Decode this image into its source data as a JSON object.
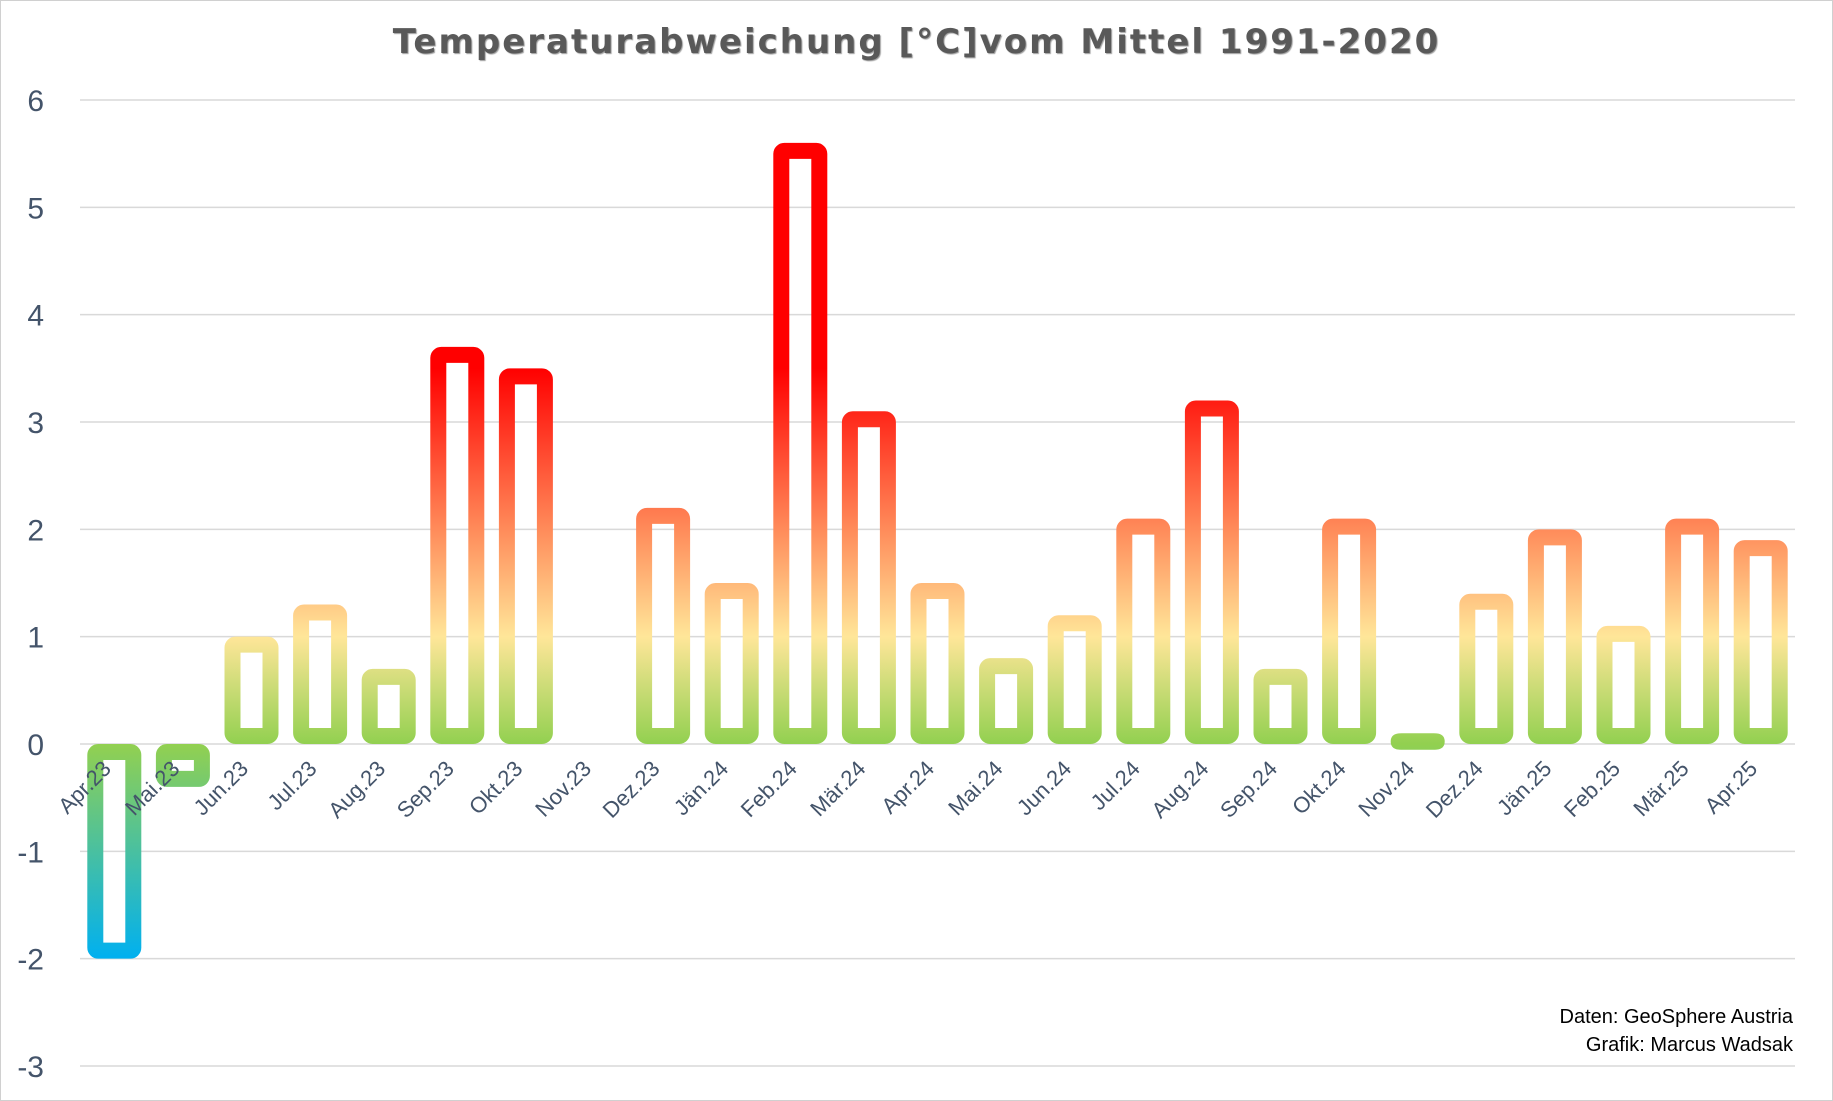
{
  "chart_data": {
    "type": "bar",
    "title": "Temperaturabweichung [°C]vom Mittel 1991-2020",
    "xlabel": "",
    "ylabel": "",
    "ylim": [
      -3,
      6
    ],
    "yticks": [
      "6",
      "5",
      "4",
      "3",
      "2",
      "1",
      "0",
      "-1",
      "-2",
      "-3"
    ],
    "grid": true,
    "categories": [
      "Apr.23",
      "Mai.23",
      "Jun.23",
      "Jul.23",
      "Aug.23",
      "Sep.23",
      "Okt.23",
      "Nov.23",
      "Dez.23",
      "Jän.24",
      "Feb.24",
      "Mär.24",
      "Apr.24",
      "Mai.24",
      "Jun.24",
      "Jul.24",
      "Aug.24",
      "Sep.24",
      "Okt.24",
      "Nov.24",
      "Dez.24",
      "Jän.25",
      "Feb.25",
      "Mär.25",
      "Apr.25"
    ],
    "values": [
      -2.0,
      -0.4,
      1.0,
      1.3,
      0.7,
      3.7,
      3.5,
      0.0,
      2.2,
      1.5,
      5.6,
      3.1,
      1.5,
      0.8,
      1.2,
      2.1,
      3.2,
      0.7,
      2.1,
      0.1,
      1.4,
      2.0,
      1.1,
      2.1,
      1.9
    ],
    "colors": {
      "cold": "#00b0f0",
      "zero": "#92d050",
      "mild": "#ffe699",
      "warm": "#ff8b5a",
      "hot": "#ff0000",
      "grid": "#d9d9d9",
      "axis_text": "#44546a"
    }
  },
  "credits": {
    "data": "Daten: GeoSphere Austria",
    "graphic": "Grafik: Marcus Wadsak"
  }
}
